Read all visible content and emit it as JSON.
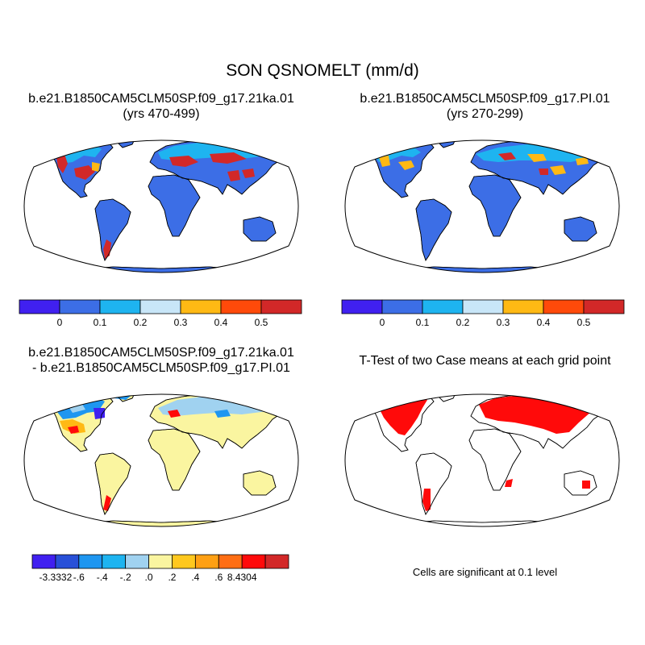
{
  "title": "SON QSNOMELT (mm/d)",
  "panels": {
    "top_left": {
      "title_line1": "b.e21.B1850CAM5CLM50SP.f09_g17.21ka.01",
      "title_line2": "(yrs 470-499)"
    },
    "top_right": {
      "title_line1": "b.e21.B1850CAM5CLM50SP.f09_g17.PI.01",
      "title_line2": "(yrs 270-299)"
    },
    "bottom_left": {
      "title_line1": "b.e21.B1850CAM5CLM50SP.f09_g17.21ka.01",
      "title_line2": "- b.e21.B1850CAM5CLM50SP.f09_g17.PI.01"
    },
    "bottom_right": {
      "title_line1": "T-Test of two Case means at each grid point",
      "note": "Cells are significant at 0.1 level"
    }
  },
  "colorbars": {
    "mean": {
      "colors": [
        "#4020f0",
        "#3c6ee6",
        "#1eb4f0",
        "#c8e6f8",
        "#ffb914",
        "#ff4a0a",
        "#d22828"
      ],
      "labels": [
        "0",
        "0.1",
        "0.2",
        "0.3",
        "0.4",
        "0.5"
      ]
    },
    "diff": {
      "colors": [
        "#4020f0",
        "#2850d8",
        "#1e96f0",
        "#1eb4f0",
        "#a0d2f0",
        "#faf5a0",
        "#ffc81e",
        "#ffa014",
        "#ff6e14",
        "#ff0a0a",
        "#d22828"
      ],
      "labels": [
        "-3.3332",
        "-.6",
        "-.4",
        "-.2",
        ".0",
        ".2",
        ".4",
        ".6",
        "8.4304"
      ]
    }
  },
  "map_colors": {
    "land_low": "#3c6ee6",
    "snow_light": "#1eb4f0",
    "snow_pale": "#c8e6f8",
    "snow_orange": "#ffb914",
    "snow_red": "#d22828",
    "diff_land": "#faf5a0",
    "diff_blue": "#1e96f0",
    "diff_pale": "#a0d2f0",
    "diff_deep": "#4020f0",
    "ttest_sig": "#ff0a0a"
  }
}
